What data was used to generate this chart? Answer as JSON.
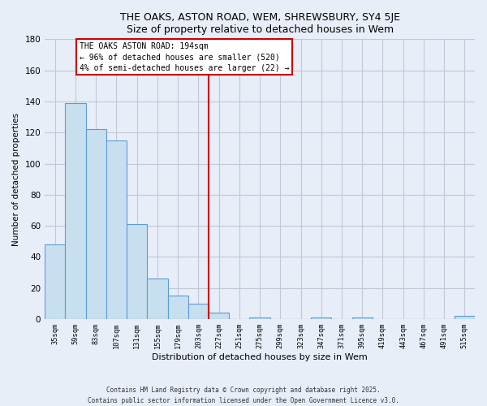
{
  "title": "THE OAKS, ASTON ROAD, WEM, SHREWSBURY, SY4 5JE",
  "subtitle": "Size of property relative to detached houses in Wem",
  "xlabel": "Distribution of detached houses by size in Wem",
  "ylabel": "Number of detached properties",
  "bin_labels": [
    "35sqm",
    "59sqm",
    "83sqm",
    "107sqm",
    "131sqm",
    "155sqm",
    "179sqm",
    "203sqm",
    "227sqm",
    "251sqm",
    "275sqm",
    "299sqm",
    "323sqm",
    "347sqm",
    "371sqm",
    "395sqm",
    "419sqm",
    "443sqm",
    "467sqm",
    "491sqm",
    "515sqm"
  ],
  "bar_heights": [
    48,
    139,
    122,
    115,
    61,
    26,
    15,
    10,
    4,
    0,
    1,
    0,
    0,
    1,
    0,
    1,
    0,
    0,
    0,
    0,
    2
  ],
  "bar_color": "#c8dff0",
  "bar_edge_color": "#5b9bd5",
  "vline_x": 7.5,
  "vline_color": "#cc0000",
  "annotation_title": "THE OAKS ASTON ROAD: 194sqm",
  "annotation_line1": "← 96% of detached houses are smaller (520)",
  "annotation_line2": "4% of semi-detached houses are larger (22) →",
  "ylim": [
    0,
    180
  ],
  "yticks": [
    0,
    20,
    40,
    60,
    80,
    100,
    120,
    140,
    160,
    180
  ],
  "footer1": "Contains HM Land Registry data © Crown copyright and database right 2025.",
  "footer2": "Contains public sector information licensed under the Open Government Licence v3.0.",
  "bg_color": "#e8eef8",
  "plot_bg_color": "#e8eef8",
  "grid_color": "#c0c8d8"
}
